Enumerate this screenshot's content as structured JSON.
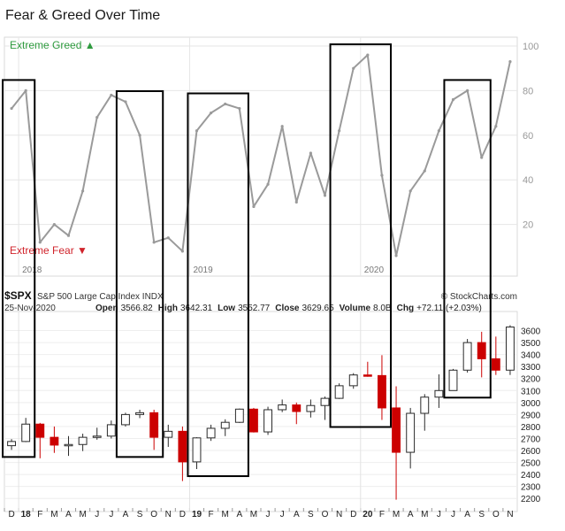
{
  "page_title": "Fear & Greed Over Time",
  "colors": {
    "greed_green": "#2e9a3e",
    "fear_red": "#d0232b",
    "index_line": "#9a9a9a",
    "candle_up": "#2a2a2a",
    "candle_down": "#cc0000",
    "box_stroke": "#000000"
  },
  "chart_data": [
    {
      "type": "line",
      "title": "Fear & Greed Over Time",
      "top_label": "Extreme Greed",
      "bottom_label": "Extreme Fear",
      "ylim": [
        0,
        100
      ],
      "y_ticks": [
        20,
        40,
        60,
        80,
        100
      ],
      "year_labels": [
        "2018",
        "2019",
        "2020"
      ],
      "grid": true,
      "x": [
        "Dec 2017",
        "Jan 2018",
        "Feb 2018",
        "Mar 2018",
        "Apr 2018",
        "May 2018",
        "Jun 2018",
        "Jul 2018",
        "Aug 2018",
        "Sep 2018",
        "Oct 2018",
        "Nov 2018",
        "Dec 2018",
        "Jan 2019",
        "Feb 2019",
        "Mar 2019",
        "Apr 2019",
        "May 2019",
        "Jun 2019",
        "Jul 2019",
        "Aug 2019",
        "Sep 2019",
        "Oct 2019",
        "Nov 2019",
        "Dec 2019",
        "Jan 2020",
        "Feb 2020",
        "Mar 2020",
        "Apr 2020",
        "May 2020",
        "Jun 2020",
        "Jul 2020",
        "Aug 2020",
        "Sep 2020",
        "Oct 2020",
        "Nov 2020"
      ],
      "series": [
        {
          "values": [
            72,
            80,
            12,
            20,
            15,
            35,
            68,
            78,
            75,
            60,
            12,
            14,
            8,
            62,
            70,
            74,
            72,
            28,
            38,
            64,
            30,
            52,
            33,
            62,
            90,
            96,
            42,
            6,
            35,
            44,
            62,
            76,
            80,
            50,
            64,
            93
          ]
        }
      ]
    },
    {
      "type": "candlestick",
      "symbol": "$SPX",
      "name": "S&P 500 Large Cap Index",
      "exchange": "INDX",
      "date": "25-Nov-2020",
      "open_label": "Open",
      "open": "3566.82",
      "high_label": "High",
      "high": "3642.31",
      "low_label": "Low",
      "low": "3552.77",
      "close_label": "Close",
      "close": "3629.65",
      "volume_label": "Volume",
      "volume": "8.0B",
      "chg_label": "Chg",
      "chg": "+72.11 (+2.03%)",
      "credit": "© StockCharts.com",
      "ylim": [
        2150,
        3700
      ],
      "y_ticks": [
        2200,
        2300,
        2400,
        2500,
        2600,
        2700,
        2800,
        2900,
        3000,
        3100,
        3200,
        3300,
        3400,
        3500,
        3600
      ],
      "x_month_labels": [
        "D",
        "18",
        "F",
        "M",
        "A",
        "M",
        "J",
        "J",
        "A",
        "S",
        "O",
        "N",
        "D",
        "19",
        "F",
        "M",
        "A",
        "M",
        "J",
        "J",
        "A",
        "S",
        "O",
        "N",
        "D",
        "20",
        "F",
        "M",
        "A",
        "M",
        "J",
        "J",
        "A",
        "S",
        "O",
        "N"
      ],
      "x": [
        "Dec 2017",
        "Jan 2018",
        "Feb 2018",
        "Mar 2018",
        "Apr 2018",
        "May 2018",
        "Jun 2018",
        "Jul 2018",
        "Aug 2018",
        "Sep 2018",
        "Oct 2018",
        "Nov 2018",
        "Dec 2018",
        "Jan 2019",
        "Feb 2019",
        "Mar 2019",
        "Apr 2019",
        "May 2019",
        "Jun 2019",
        "Jul 2019",
        "Aug 2019",
        "Sep 2019",
        "Oct 2019",
        "Nov 2019",
        "Dec 2019",
        "Jan 2020",
        "Feb 2020",
        "Mar 2020",
        "Apr 2020",
        "May 2020",
        "Jun 2020",
        "Jul 2020",
        "Aug 2020",
        "Sep 2020",
        "Oct 2020",
        "Nov 2020"
      ],
      "ohlc": [
        {
          "o": 2640,
          "h": 2695,
          "l": 2605,
          "c": 2675
        },
        {
          "o": 2675,
          "h": 2872,
          "l": 2670,
          "c": 2820
        },
        {
          "o": 2820,
          "h": 2830,
          "l": 2535,
          "c": 2710
        },
        {
          "o": 2710,
          "h": 2800,
          "l": 2580,
          "c": 2645
        },
        {
          "o": 2645,
          "h": 2720,
          "l": 2555,
          "c": 2650
        },
        {
          "o": 2650,
          "h": 2740,
          "l": 2595,
          "c": 2710
        },
        {
          "o": 2710,
          "h": 2790,
          "l": 2690,
          "c": 2720
        },
        {
          "o": 2720,
          "h": 2850,
          "l": 2700,
          "c": 2815
        },
        {
          "o": 2815,
          "h": 2915,
          "l": 2800,
          "c": 2900
        },
        {
          "o": 2900,
          "h": 2940,
          "l": 2870,
          "c": 2915
        },
        {
          "o": 2915,
          "h": 2940,
          "l": 2605,
          "c": 2710
        },
        {
          "o": 2710,
          "h": 2815,
          "l": 2630,
          "c": 2760
        },
        {
          "o": 2760,
          "h": 2800,
          "l": 2345,
          "c": 2505
        },
        {
          "o": 2505,
          "h": 2710,
          "l": 2445,
          "c": 2705
        },
        {
          "o": 2705,
          "h": 2815,
          "l": 2680,
          "c": 2785
        },
        {
          "o": 2785,
          "h": 2860,
          "l": 2720,
          "c": 2835
        },
        {
          "o": 2835,
          "h": 2950,
          "l": 2830,
          "c": 2945
        },
        {
          "o": 2945,
          "h": 2955,
          "l": 2750,
          "c": 2755
        },
        {
          "o": 2755,
          "h": 2965,
          "l": 2730,
          "c": 2940
        },
        {
          "o": 2940,
          "h": 3025,
          "l": 2920,
          "c": 2980
        },
        {
          "o": 2980,
          "h": 3000,
          "l": 2820,
          "c": 2925
        },
        {
          "o": 2925,
          "h": 3025,
          "l": 2875,
          "c": 2975
        },
        {
          "o": 2975,
          "h": 3050,
          "l": 2855,
          "c": 3035
        },
        {
          "o": 3035,
          "h": 3160,
          "l": 3030,
          "c": 3140
        },
        {
          "o": 3140,
          "h": 3245,
          "l": 3115,
          "c": 3230
        },
        {
          "o": 3230,
          "h": 3340,
          "l": 3215,
          "c": 3225
        },
        {
          "o": 3225,
          "h": 3395,
          "l": 2855,
          "c": 2955
        },
        {
          "o": 2955,
          "h": 3135,
          "l": 2190,
          "c": 2585
        },
        {
          "o": 2585,
          "h": 2955,
          "l": 2450,
          "c": 2910
        },
        {
          "o": 2910,
          "h": 3070,
          "l": 2765,
          "c": 3045
        },
        {
          "o": 3045,
          "h": 3235,
          "l": 2955,
          "c": 3100
        },
        {
          "o": 3100,
          "h": 3280,
          "l": 3100,
          "c": 3270
        },
        {
          "o": 3270,
          "h": 3530,
          "l": 3250,
          "c": 3500
        },
        {
          "o": 3500,
          "h": 3590,
          "l": 3210,
          "c": 3365
        },
        {
          "o": 3365,
          "h": 3550,
          "l": 3230,
          "c": 3270
        },
        {
          "o": 3270,
          "h": 3645,
          "l": 3230,
          "c": 3630
        }
      ],
      "highlight_boxes": [
        {
          "from": "Dec 2017",
          "to": "Jan 2018"
        },
        {
          "from": "Aug 2018",
          "to": "Oct 2018"
        },
        {
          "from": "Jan 2019",
          "to": "Apr 2019"
        },
        {
          "from": "Nov 2019",
          "to": "Feb 2020"
        },
        {
          "from": "Jul 2020",
          "to": "Sep 2020"
        }
      ]
    }
  ]
}
